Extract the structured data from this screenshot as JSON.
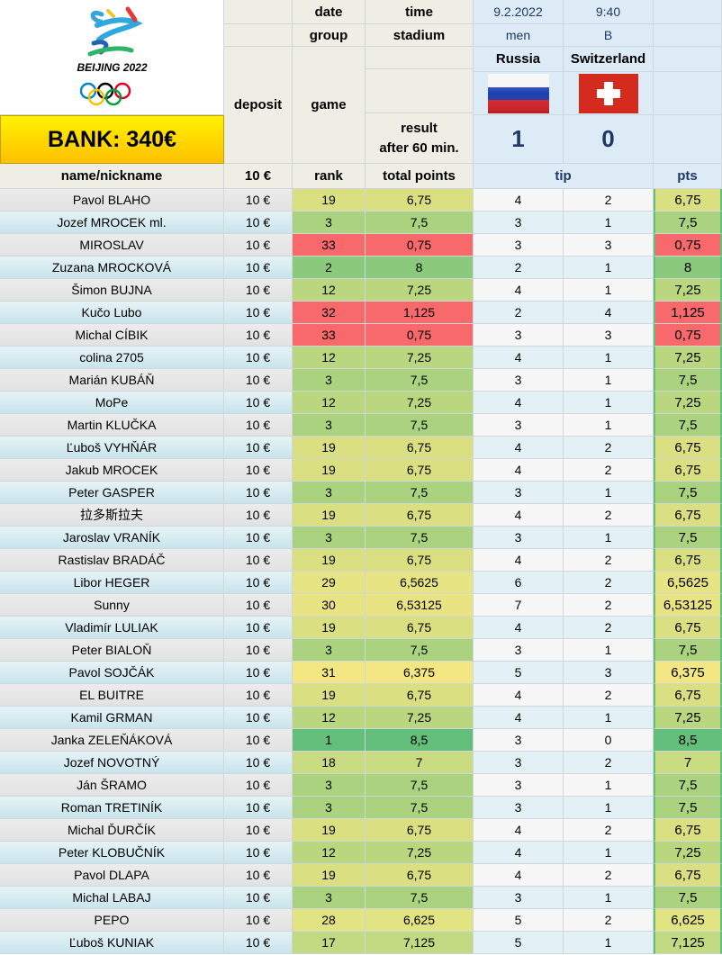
{
  "header": {
    "logo_text": "BEIJING 2022",
    "bank_label": "BANK: 340€",
    "date_label": "date",
    "time_label": "time",
    "group_label": "group",
    "stadium_label": "stadium",
    "date_value": "9.2.2022",
    "time_value": "9:40",
    "category_value": "men",
    "group_value": "B",
    "team_home": "Russia",
    "team_away": "Switzerland",
    "deposit_label": "deposit",
    "game_label": "game",
    "result_label_1": "result",
    "result_label_2": "after 60 min.",
    "score_home": "1",
    "score_away": "0"
  },
  "columns": {
    "name": "name/nickname",
    "deposit": "10 €",
    "rank": "rank",
    "total": "total points",
    "tip": "tip",
    "pts": "pts"
  },
  "colors": {
    "green": "#63be7b",
    "yellow": "#ffeb84",
    "red": "#f8696b"
  },
  "rows": [
    {
      "name": "Pavol BLAHO",
      "deposit": "10 €",
      "rank": "19",
      "total": "6,75",
      "tip_home": "4",
      "tip_away": "2",
      "pts": "6,75"
    },
    {
      "name": "Jozef MROCEK ml.",
      "deposit": "10 €",
      "rank": "3",
      "total": "7,5",
      "tip_home": "3",
      "tip_away": "1",
      "pts": "7,5"
    },
    {
      "name": "MIROSLAV",
      "deposit": "10 €",
      "rank": "33",
      "total": "0,75",
      "tip_home": "3",
      "tip_away": "3",
      "pts": "0,75"
    },
    {
      "name": "Zuzana MROCKOVÁ",
      "deposit": "10 €",
      "rank": "2",
      "total": "8",
      "tip_home": "2",
      "tip_away": "1",
      "pts": "8"
    },
    {
      "name": "Šimon BUJNA",
      "deposit": "10 €",
      "rank": "12",
      "total": "7,25",
      "tip_home": "4",
      "tip_away": "1",
      "pts": "7,25"
    },
    {
      "name": "Kučo Lubo",
      "deposit": "10 €",
      "rank": "32",
      "total": "1,125",
      "tip_home": "2",
      "tip_away": "4",
      "pts": "1,125"
    },
    {
      "name": "Michal CÍBIK",
      "deposit": "10 €",
      "rank": "33",
      "total": "0,75",
      "tip_home": "3",
      "tip_away": "3",
      "pts": "0,75"
    },
    {
      "name": "colina 2705",
      "deposit": "10 €",
      "rank": "12",
      "total": "7,25",
      "tip_home": "4",
      "tip_away": "1",
      "pts": "7,25"
    },
    {
      "name": "Marián KUBÁŇ",
      "deposit": "10 €",
      "rank": "3",
      "total": "7,5",
      "tip_home": "3",
      "tip_away": "1",
      "pts": "7,5"
    },
    {
      "name": "MoPe",
      "deposit": "10 €",
      "rank": "12",
      "total": "7,25",
      "tip_home": "4",
      "tip_away": "1",
      "pts": "7,25"
    },
    {
      "name": "Martin KLUČKA",
      "deposit": "10 €",
      "rank": "3",
      "total": "7,5",
      "tip_home": "3",
      "tip_away": "1",
      "pts": "7,5"
    },
    {
      "name": "Ľuboš VYHŇÁR",
      "deposit": "10 €",
      "rank": "19",
      "total": "6,75",
      "tip_home": "4",
      "tip_away": "2",
      "pts": "6,75"
    },
    {
      "name": "Jakub MROCEK",
      "deposit": "10 €",
      "rank": "19",
      "total": "6,75",
      "tip_home": "4",
      "tip_away": "2",
      "pts": "6,75"
    },
    {
      "name": "Peter GASPER",
      "deposit": "10 €",
      "rank": "3",
      "total": "7,5",
      "tip_home": "3",
      "tip_away": "1",
      "pts": "7,5"
    },
    {
      "name": "拉多斯拉夫",
      "deposit": "10 €",
      "rank": "19",
      "total": "6,75",
      "tip_home": "4",
      "tip_away": "2",
      "pts": "6,75"
    },
    {
      "name": "Jaroslav VRANÍK",
      "deposit": "10 €",
      "rank": "3",
      "total": "7,5",
      "tip_home": "3",
      "tip_away": "1",
      "pts": "7,5"
    },
    {
      "name": "Rastislav BRADÁČ",
      "deposit": "10 €",
      "rank": "19",
      "total": "6,75",
      "tip_home": "4",
      "tip_away": "2",
      "pts": "6,75"
    },
    {
      "name": "Libor HEGER",
      "deposit": "10 €",
      "rank": "29",
      "total": "6,5625",
      "tip_home": "6",
      "tip_away": "2",
      "pts": "6,5625"
    },
    {
      "name": "Sunny",
      "deposit": "10 €",
      "rank": "30",
      "total": "6,53125",
      "tip_home": "7",
      "tip_away": "2",
      "pts": "6,53125"
    },
    {
      "name": "Vladimír LULIAK",
      "deposit": "10 €",
      "rank": "19",
      "total": "6,75",
      "tip_home": "4",
      "tip_away": "2",
      "pts": "6,75"
    },
    {
      "name": "Peter BIALOŇ",
      "deposit": "10 €",
      "rank": "3",
      "total": "7,5",
      "tip_home": "3",
      "tip_away": "1",
      "pts": "7,5"
    },
    {
      "name": "Pavol SOJČÁK",
      "deposit": "10 €",
      "rank": "31",
      "total": "6,375",
      "tip_home": "5",
      "tip_away": "3",
      "pts": "6,375"
    },
    {
      "name": "EL BUITRE",
      "deposit": "10 €",
      "rank": "19",
      "total": "6,75",
      "tip_home": "4",
      "tip_away": "2",
      "pts": "6,75"
    },
    {
      "name": "Kamil GRMAN",
      "deposit": "10 €",
      "rank": "12",
      "total": "7,25",
      "tip_home": "4",
      "tip_away": "1",
      "pts": "7,25"
    },
    {
      "name": "Janka ZELEŇÁKOVÁ",
      "deposit": "10 €",
      "rank": "1",
      "total": "8,5",
      "tip_home": "3",
      "tip_away": "0",
      "pts": "8,5"
    },
    {
      "name": "Jozef NOVOTNÝ",
      "deposit": "10 €",
      "rank": "18",
      "total": "7",
      "tip_home": "3",
      "tip_away": "2",
      "pts": "7"
    },
    {
      "name": "Ján ŠRAMO",
      "deposit": "10 €",
      "rank": "3",
      "total": "7,5",
      "tip_home": "3",
      "tip_away": "1",
      "pts": "7,5"
    },
    {
      "name": "Roman TRETINÍK",
      "deposit": "10 €",
      "rank": "3",
      "total": "7,5",
      "tip_home": "3",
      "tip_away": "1",
      "pts": "7,5"
    },
    {
      "name": "Michal ĎURČÍK",
      "deposit": "10 €",
      "rank": "19",
      "total": "6,75",
      "tip_home": "4",
      "tip_away": "2",
      "pts": "6,75"
    },
    {
      "name": "Peter KLOBUČNÍK",
      "deposit": "10 €",
      "rank": "12",
      "total": "7,25",
      "tip_home": "4",
      "tip_away": "1",
      "pts": "7,25"
    },
    {
      "name": "Pavol DLAPA",
      "deposit": "10 €",
      "rank": "19",
      "total": "6,75",
      "tip_home": "4",
      "tip_away": "2",
      "pts": "6,75"
    },
    {
      "name": "Michal LABAJ",
      "deposit": "10 €",
      "rank": "3",
      "total": "7,5",
      "tip_home": "3",
      "tip_away": "1",
      "pts": "7,5"
    },
    {
      "name": "PEPO",
      "deposit": "10 €",
      "rank": "28",
      "total": "6,625",
      "tip_home": "5",
      "tip_away": "2",
      "pts": "6,625"
    },
    {
      "name": "Ľuboš KUNIAK",
      "deposit": "10 €",
      "rank": "17",
      "total": "7,125",
      "tip_home": "5",
      "tip_away": "1",
      "pts": "7,125"
    }
  ]
}
